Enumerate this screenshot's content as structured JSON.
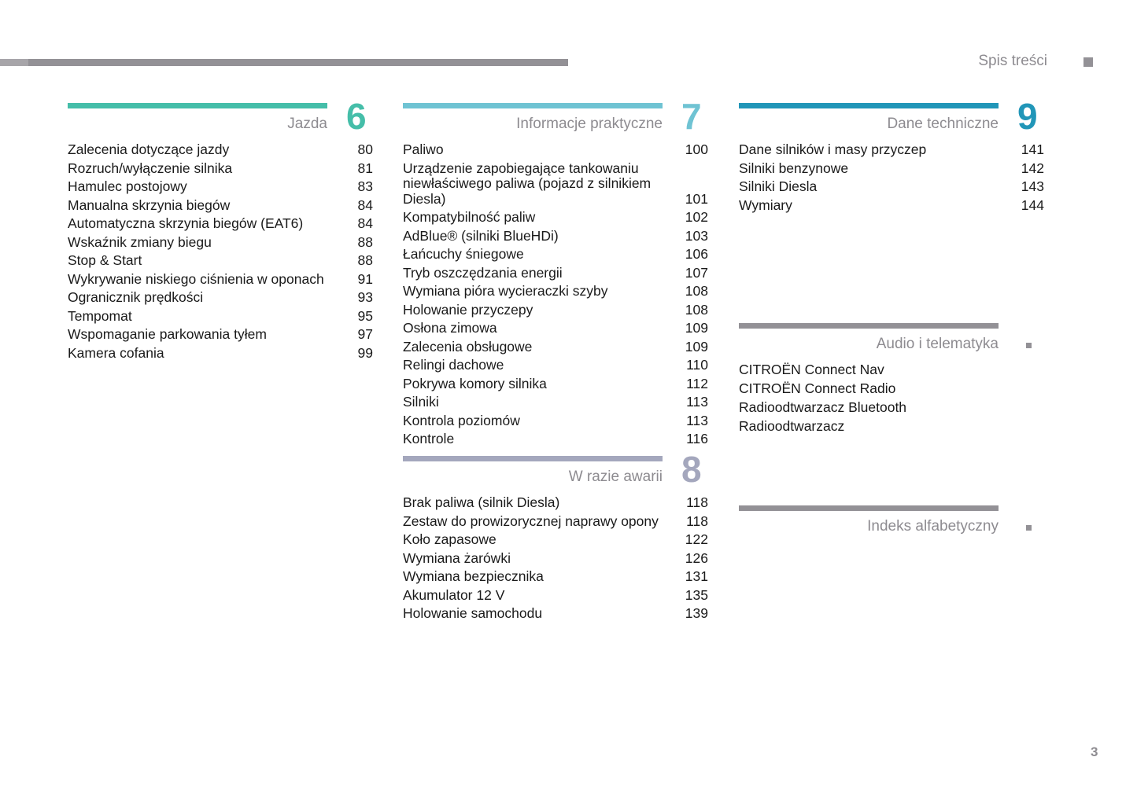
{
  "header": {
    "title": "Spis treści",
    "page_number": "3"
  },
  "sections": [
    {
      "number": "6",
      "title": "Jazda",
      "color": "#45bea9",
      "items": [
        {
          "t": "Zalecenia dotyczące jazdy",
          "p": "80"
        },
        {
          "t": "Rozruch/wyłączenie silnika",
          "p": "81"
        },
        {
          "t": "Hamulec postojowy",
          "p": "83"
        },
        {
          "t": "Manualna skrzynia biegów",
          "p": "84"
        },
        {
          "t": "Automatyczna skrzynia biegów (EAT6)",
          "p": "84"
        },
        {
          "t": "Wskaźnik zmiany biegu",
          "p": "88"
        },
        {
          "t": "Stop & Start",
          "p": "88"
        },
        {
          "t": "Wykrywanie niskiego ciśnienia w oponach",
          "p": "91"
        },
        {
          "t": "Ogranicznik prędkości",
          "p": "93"
        },
        {
          "t": "Tempomat",
          "p": "95"
        },
        {
          "t": "Wspomaganie parkowania tyłem",
          "p": "97"
        },
        {
          "t": "Kamera cofania",
          "p": "99"
        }
      ]
    },
    {
      "number": "7",
      "title": "Informacje praktyczne",
      "color": "#6fc3d3",
      "items": [
        {
          "t": "Paliwo",
          "p": "100"
        },
        {
          "t": "Urządzenie zapobiegające tankowaniu niewłaściwego paliwa (pojazd z silnikiem Diesla)",
          "p": "101"
        },
        {
          "t": "Kompatybilność paliw",
          "p": "102"
        },
        {
          "t": "AdBlue® (silniki BlueHDi)",
          "p": "103"
        },
        {
          "t": "Łańcuchy śniegowe",
          "p": "106"
        },
        {
          "t": "Tryb oszczędzania energii",
          "p": "107"
        },
        {
          "t": "Wymiana pióra wycieraczki szyby",
          "p": "108"
        },
        {
          "t": "Holowanie przyczepy",
          "p": "108"
        },
        {
          "t": "Osłona zimowa",
          "p": "109"
        },
        {
          "t": "Zalecenia obsługowe",
          "p": "109"
        },
        {
          "t": "Relingi dachowe",
          "p": "110"
        },
        {
          "t": "Pokrywa komory silnika",
          "p": "112"
        },
        {
          "t": "Silniki",
          "p": "113"
        },
        {
          "t": "Kontrola poziomów",
          "p": "113"
        },
        {
          "t": "Kontrole",
          "p": "116"
        }
      ]
    },
    {
      "number": "8",
      "title": "W razie awarii",
      "color": "#a4a7bd",
      "items": [
        {
          "t": "Brak paliwa (silnik Diesla)",
          "p": "118"
        },
        {
          "t": "Zestaw do prowizorycznej naprawy opony",
          "p": "118"
        },
        {
          "t": "Koło zapasowe",
          "p": "122"
        },
        {
          "t": "Wymiana żarówki",
          "p": "126"
        },
        {
          "t": "Wymiana bezpiecznika",
          "p": "131"
        },
        {
          "t": "Akumulator 12 V",
          "p": "135"
        },
        {
          "t": "Holowanie samochodu",
          "p": "139"
        }
      ]
    },
    {
      "number": "9",
      "title": "Dane techniczne",
      "color": "#2196b8",
      "items": [
        {
          "t": "Dane silników i masy przyczep",
          "p": "141"
        },
        {
          "t": "Silniki benzynowe",
          "p": "142"
        },
        {
          "t": "Silniki Diesla",
          "p": "143"
        },
        {
          "t": "Wymiary",
          "p": "144"
        }
      ]
    },
    {
      "number": "",
      "title": "Audio i telematyka",
      "color": "#939196",
      "items": [
        {
          "t": "CITROËN Connect Nav",
          "p": ""
        },
        {
          "t": "CITROËN Connect Radio",
          "p": ""
        },
        {
          "t": "Radioodtwarzacz Bluetooth",
          "p": ""
        },
        {
          "t": "Radioodtwarzacz",
          "p": ""
        }
      ]
    },
    {
      "number": "",
      "title": "Indeks alfabetyczny",
      "color": "#939196",
      "items": []
    }
  ]
}
